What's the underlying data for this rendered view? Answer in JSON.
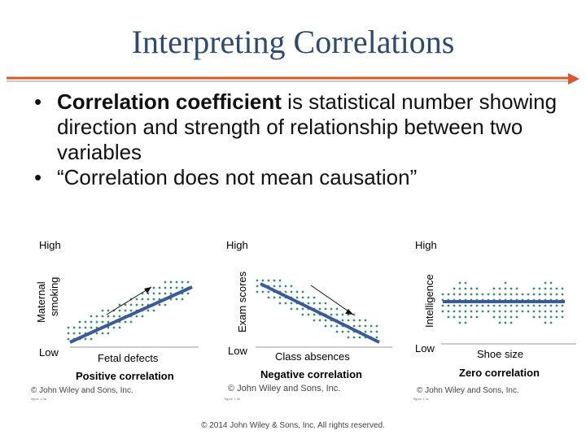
{
  "slide": {
    "title": "Interpreting Correlations",
    "bullets": [
      {
        "bold": "Correlation coefficient",
        "text": " is statistical number showing direction and strength of relationship between two variables"
      },
      {
        "bold": "",
        "text": "“Correlation does not mean causation”"
      }
    ],
    "footer": "© 2014 John Wiley & Sons, Inc. All rights reserved."
  },
  "figures": [
    {
      "high": "High",
      "low": "Low",
      "y_label_line1": "Maternal",
      "y_label_line2": "smoking",
      "x_label": "Fetal defects",
      "caption": "Positive correlation",
      "copyright": "© John Wiley and Sons, Inc.",
      "fig_ref": "figure 1.3a",
      "trend": "positive"
    },
    {
      "high": "High",
      "low": "Low",
      "y_label": "Exam scores",
      "x_label": "Class absences",
      "caption": "Negative correlation",
      "copyright": "© John Wiley and Sons, Inc.",
      "fig_ref": "figure 1.3b",
      "trend": "negative"
    },
    {
      "high": "High",
      "low": "Low",
      "y_label": "Intelligence",
      "x_label": "Shoe size",
      "caption": "Zero correlation",
      "copyright": "© John Wiley and Sons, Inc.",
      "fig_ref": "figure 1.3c",
      "trend": "zero"
    }
  ],
  "colors": {
    "title": "#2f4a6d",
    "dots": "#3e8e6a",
    "line": "#3a5a9a",
    "rule": "#d9572b"
  }
}
